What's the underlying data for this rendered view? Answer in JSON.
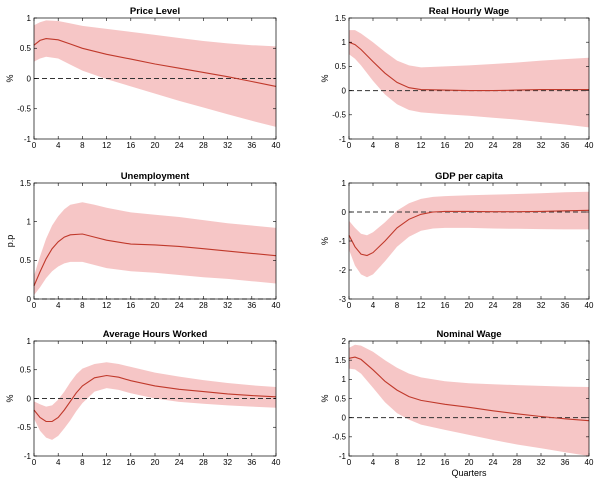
{
  "colors": {
    "line": "#c0392b",
    "band": "#f4b6b6",
    "zero": "#333333",
    "axis": "#000000"
  },
  "chart_data": [
    {
      "type": "line",
      "title": "Price Level",
      "xlabel": "",
      "ylabel": "%",
      "xlim": [
        0,
        40
      ],
      "ylim": [
        -1,
        1
      ],
      "xticks": [
        0,
        4,
        8,
        12,
        16,
        20,
        24,
        28,
        32,
        36,
        40
      ],
      "xtick_labels": [
        "0",
        "4",
        "8",
        "12",
        "16",
        "20",
        "24",
        "28",
        "32",
        "36",
        "40"
      ],
      "yticks": [
        -1,
        -0.5,
        0,
        0.5,
        1
      ],
      "ytick_labels": [
        "-1",
        "-0.5",
        "0",
        "0.5",
        "1"
      ],
      "x": [
        0,
        1,
        2,
        4,
        6,
        8,
        12,
        16,
        20,
        24,
        28,
        32,
        36,
        40
      ],
      "series": [
        {
          "values": [
            0.55,
            0.63,
            0.66,
            0.64,
            0.57,
            0.5,
            0.4,
            0.32,
            0.24,
            0.17,
            0.1,
            0.03,
            -0.05,
            -0.13
          ]
        },
        {
          "values": [
            0.88,
            0.93,
            0.96,
            0.95,
            0.91,
            0.87,
            0.82,
            0.77,
            0.72,
            0.67,
            0.62,
            0.58,
            0.55,
            0.53
          ]
        },
        {
          "values": [
            0.28,
            0.33,
            0.36,
            0.33,
            0.23,
            0.13,
            -0.01,
            -0.13,
            -0.25,
            -0.37,
            -0.48,
            -0.59,
            -0.7,
            -0.8
          ]
        }
      ],
      "zero_line": 0
    },
    {
      "type": "line",
      "title": "Real Hourly Wage",
      "xlabel": "",
      "ylabel": "%",
      "xlim": [
        0,
        40
      ],
      "ylim": [
        -1,
        1.5
      ],
      "xticks": [
        0,
        4,
        8,
        12,
        16,
        20,
        24,
        28,
        32,
        36,
        40
      ],
      "xtick_labels": [
        "0",
        "4",
        "8",
        "12",
        "16",
        "20",
        "24",
        "28",
        "32",
        "36",
        "40"
      ],
      "yticks": [
        -1,
        -0.5,
        0,
        0.5,
        1,
        1.5
      ],
      "ytick_labels": [
        "-1",
        "-0.5",
        "0",
        "0.5",
        "1",
        "1.5"
      ],
      "x": [
        0,
        1,
        2,
        4,
        6,
        8,
        10,
        12,
        16,
        20,
        24,
        28,
        32,
        36,
        40
      ],
      "series": [
        {
          "values": [
            1.0,
            0.95,
            0.85,
            0.6,
            0.36,
            0.17,
            0.06,
            0.02,
            0.01,
            0.0,
            0.0,
            0.01,
            0.02,
            0.02,
            0.02
          ]
        },
        {
          "values": [
            1.25,
            1.25,
            1.18,
            1.0,
            0.8,
            0.62,
            0.52,
            0.48,
            0.5,
            0.52,
            0.55,
            0.58,
            0.62,
            0.65,
            0.68
          ]
        },
        {
          "values": [
            0.75,
            0.66,
            0.52,
            0.2,
            -0.08,
            -0.28,
            -0.4,
            -0.45,
            -0.49,
            -0.52,
            -0.56,
            -0.6,
            -0.65,
            -0.7,
            -0.76
          ]
        }
      ],
      "zero_line": 0
    },
    {
      "type": "line",
      "title": "Unemployment",
      "xlabel": "",
      "ylabel": "p.p",
      "xlim": [
        0,
        40
      ],
      "ylim": [
        0,
        1.5
      ],
      "xticks": [
        0,
        4,
        8,
        12,
        16,
        20,
        24,
        28,
        32,
        36,
        40
      ],
      "xtick_labels": [
        "0",
        "4",
        "8",
        "12",
        "16",
        "20",
        "24",
        "28",
        "32",
        "36",
        "40"
      ],
      "yticks": [
        0,
        0.5,
        1,
        1.5
      ],
      "ytick_labels": [
        "0",
        "0.5",
        "1",
        "1.5"
      ],
      "x": [
        0,
        1,
        2,
        3,
        4,
        5,
        6,
        8,
        10,
        12,
        16,
        20,
        24,
        28,
        32,
        36,
        40
      ],
      "series": [
        {
          "values": [
            0.17,
            0.35,
            0.52,
            0.65,
            0.74,
            0.8,
            0.83,
            0.84,
            0.8,
            0.76,
            0.71,
            0.7,
            0.68,
            0.65,
            0.62,
            0.59,
            0.56
          ]
        },
        {
          "values": [
            0.3,
            0.55,
            0.78,
            0.95,
            1.07,
            1.16,
            1.22,
            1.25,
            1.22,
            1.18,
            1.12,
            1.09,
            1.06,
            1.02,
            0.98,
            0.95,
            0.92
          ]
        },
        {
          "values": [
            0.05,
            0.15,
            0.27,
            0.36,
            0.42,
            0.46,
            0.48,
            0.48,
            0.44,
            0.4,
            0.36,
            0.34,
            0.31,
            0.28,
            0.26,
            0.23,
            0.2
          ]
        }
      ],
      "zero_line": 0
    },
    {
      "type": "line",
      "title": "GDP per capita",
      "xlabel": "",
      "ylabel": "%",
      "xlim": [
        0,
        40
      ],
      "ylim": [
        -3,
        1
      ],
      "xticks": [
        0,
        4,
        8,
        12,
        16,
        20,
        24,
        28,
        32,
        36,
        40
      ],
      "xtick_labels": [
        "0",
        "4",
        "8",
        "12",
        "16",
        "20",
        "24",
        "28",
        "32",
        "36",
        "40"
      ],
      "yticks": [
        -3,
        -2,
        -1,
        0,
        1
      ],
      "ytick_labels": [
        "-3",
        "-2",
        "-1",
        "0",
        "1"
      ],
      "x": [
        0,
        1,
        2,
        3,
        4,
        6,
        8,
        10,
        12,
        14,
        16,
        20,
        24,
        28,
        32,
        36,
        40
      ],
      "series": [
        {
          "values": [
            -0.8,
            -1.2,
            -1.45,
            -1.5,
            -1.4,
            -1.0,
            -0.55,
            -0.25,
            -0.08,
            0.0,
            0.02,
            0.02,
            0.01,
            0.01,
            0.02,
            0.04,
            0.06
          ]
        },
        {
          "values": [
            -0.3,
            -0.55,
            -0.75,
            -0.8,
            -0.7,
            -0.35,
            0.05,
            0.3,
            0.45,
            0.52,
            0.55,
            0.58,
            0.6,
            0.62,
            0.65,
            0.68,
            0.7
          ]
        },
        {
          "values": [
            -1.3,
            -1.85,
            -2.15,
            -2.25,
            -2.15,
            -1.7,
            -1.2,
            -0.85,
            -0.65,
            -0.57,
            -0.55,
            -0.55,
            -0.57,
            -0.58,
            -0.59,
            -0.6,
            -0.6
          ]
        }
      ],
      "zero_line": 0
    },
    {
      "type": "line",
      "title": "Average Hours Worked",
      "xlabel": "",
      "ylabel": "%",
      "xlim": [
        0,
        40
      ],
      "ylim": [
        -1,
        1
      ],
      "xticks": [
        0,
        4,
        8,
        12,
        16,
        20,
        24,
        28,
        32,
        36,
        40
      ],
      "xtick_labels": [
        "0",
        "4",
        "8",
        "12",
        "16",
        "20",
        "24",
        "28",
        "32",
        "36",
        "40"
      ],
      "yticks": [
        -1,
        -0.5,
        0,
        0.5,
        1
      ],
      "ytick_labels": [
        "-1",
        "-0.5",
        "0",
        "0.5",
        "1"
      ],
      "x": [
        0,
        1,
        2,
        3,
        4,
        5,
        6,
        7,
        8,
        10,
        12,
        14,
        16,
        20,
        24,
        28,
        32,
        36,
        40
      ],
      "series": [
        {
          "values": [
            -0.2,
            -0.33,
            -0.4,
            -0.4,
            -0.33,
            -0.2,
            -0.05,
            0.1,
            0.22,
            0.36,
            0.4,
            0.37,
            0.31,
            0.22,
            0.16,
            0.12,
            0.08,
            0.05,
            0.03
          ]
        },
        {
          "values": [
            -0.05,
            -0.1,
            -0.14,
            -0.12,
            -0.02,
            0.12,
            0.28,
            0.42,
            0.52,
            0.6,
            0.63,
            0.6,
            0.55,
            0.45,
            0.38,
            0.32,
            0.27,
            0.23,
            0.2
          ]
        },
        {
          "values": [
            -0.35,
            -0.56,
            -0.68,
            -0.72,
            -0.65,
            -0.52,
            -0.38,
            -0.22,
            -0.08,
            0.12,
            0.18,
            0.15,
            0.09,
            0.0,
            -0.06,
            -0.09,
            -0.12,
            -0.14,
            -0.16
          ]
        }
      ],
      "zero_line": 0
    },
    {
      "type": "line",
      "title": "Nominal Wage",
      "xlabel": "Quarters",
      "ylabel": "%",
      "xlim": [
        0,
        40
      ],
      "ylim": [
        -1,
        2
      ],
      "xticks": [
        0,
        4,
        8,
        12,
        16,
        20,
        24,
        28,
        32,
        36,
        40
      ],
      "xtick_labels": [
        "0",
        "4",
        "8",
        "12",
        "16",
        "20",
        "24",
        "28",
        "32",
        "36",
        "40"
      ],
      "yticks": [
        -1,
        -0.5,
        0,
        0.5,
        1,
        1.5,
        2
      ],
      "ytick_labels": [
        "-1",
        "-0.5",
        "0",
        "0.5",
        "1",
        "1.5",
        "2"
      ],
      "x": [
        0,
        1,
        2,
        4,
        6,
        8,
        10,
        12,
        16,
        20,
        24,
        28,
        32,
        36,
        40
      ],
      "series": [
        {
          "values": [
            1.55,
            1.58,
            1.52,
            1.25,
            0.95,
            0.72,
            0.55,
            0.45,
            0.35,
            0.27,
            0.18,
            0.1,
            0.03,
            -0.03,
            -0.08
          ]
        },
        {
          "values": [
            1.82,
            1.9,
            1.88,
            1.72,
            1.5,
            1.3,
            1.15,
            1.05,
            0.95,
            0.9,
            0.87,
            0.85,
            0.83,
            0.81,
            0.8
          ]
        },
        {
          "values": [
            1.28,
            1.26,
            1.15,
            0.78,
            0.4,
            0.12,
            -0.05,
            -0.18,
            -0.32,
            -0.45,
            -0.58,
            -0.7,
            -0.8,
            -0.9,
            -1.0
          ]
        }
      ],
      "zero_line": 0
    }
  ]
}
